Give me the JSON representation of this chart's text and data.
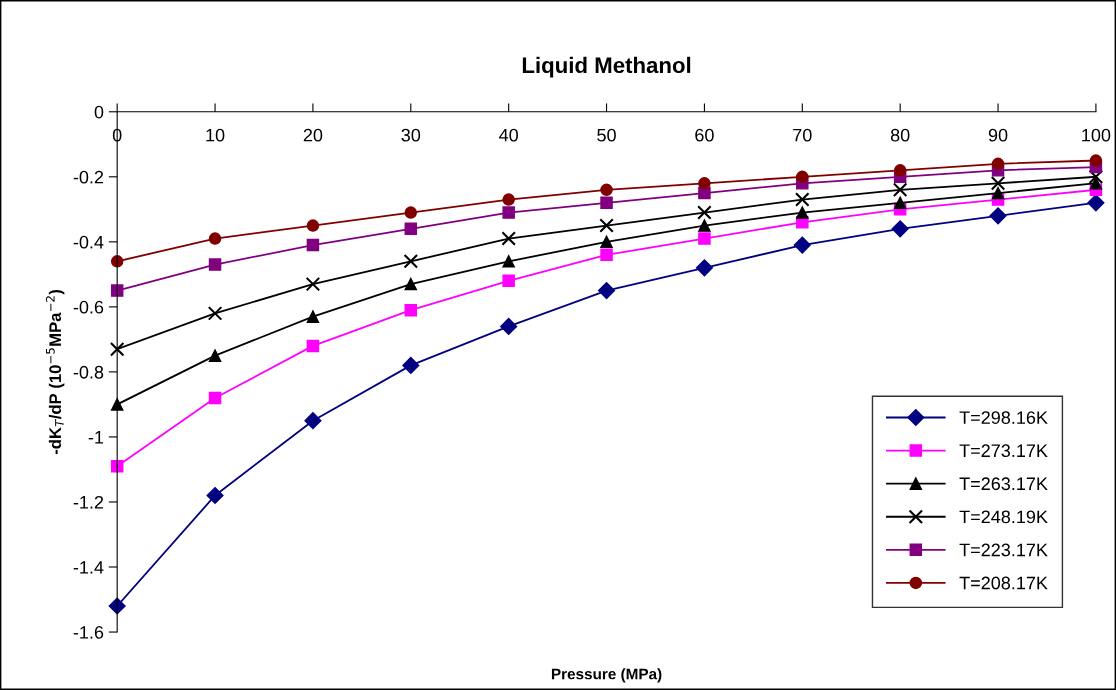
{
  "chart_data": {
    "type": "line",
    "title": "Liquid Methanol",
    "xlabel": "Pressure (MPa)",
    "ylabel": "-dK$_{T}$/dP (10$^{−5}$MPa$^{−2}$)",
    "x": [
      0,
      10,
      20,
      30,
      40,
      50,
      60,
      70,
      80,
      90,
      100
    ],
    "xlim": [
      0,
      100
    ],
    "xticks": [
      0,
      10,
      20,
      30,
      40,
      50,
      60,
      70,
      80,
      90,
      100
    ],
    "ylim": [
      -1.6,
      0
    ],
    "yticks": [
      -1.6,
      -1.4,
      -1.2,
      -1,
      -0.8,
      -0.6,
      -0.4,
      -0.2,
      0
    ],
    "grid": false,
    "legend": "bottom right",
    "line_style": "solid",
    "series": [
      {
        "name": "T=298.16K",
        "color": "#000080",
        "marker": "diamond",
        "values": [
          -1.52,
          -1.18,
          -0.95,
          -0.78,
          -0.66,
          -0.55,
          -0.48,
          -0.41,
          -0.36,
          -0.32,
          -0.28
        ]
      },
      {
        "name": "T=273.17K",
        "color": "#ff00ff",
        "marker": "square",
        "values": [
          -1.09,
          -0.88,
          -0.72,
          -0.61,
          -0.52,
          -0.44,
          -0.39,
          -0.34,
          -0.3,
          -0.27,
          -0.24
        ]
      },
      {
        "name": "T=263.17K",
        "color": "#000000",
        "marker": "triangle",
        "values": [
          -0.9,
          -0.75,
          -0.63,
          -0.53,
          -0.46,
          -0.4,
          -0.35,
          -0.31,
          -0.28,
          -0.25,
          -0.22
        ]
      },
      {
        "name": "T=248.19K",
        "color": "#000000",
        "marker": "cross",
        "values": [
          -0.73,
          -0.62,
          -0.53,
          -0.46,
          -0.39,
          -0.35,
          -0.31,
          -0.27,
          -0.24,
          -0.22,
          -0.2
        ]
      },
      {
        "name": "T=223.17K",
        "color": "#800080",
        "marker": "square",
        "values": [
          -0.55,
          -0.47,
          -0.41,
          -0.36,
          -0.31,
          -0.28,
          -0.25,
          -0.22,
          -0.2,
          -0.18,
          -0.17
        ]
      },
      {
        "name": "T=208.17K",
        "color": "#800000",
        "marker": "circle",
        "values": [
          -0.46,
          -0.39,
          -0.35,
          -0.31,
          -0.27,
          -0.24,
          -0.22,
          -0.2,
          -0.18,
          -0.16,
          -0.15
        ]
      }
    ]
  }
}
